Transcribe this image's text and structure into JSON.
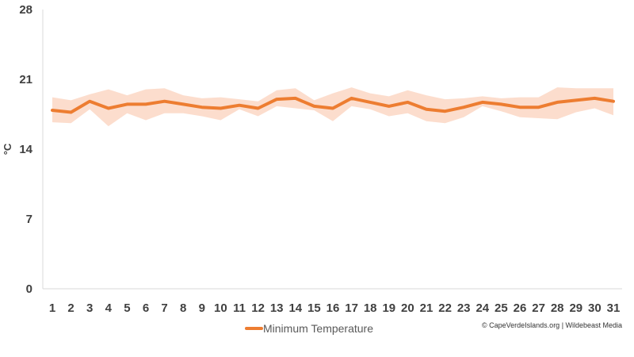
{
  "chart_data": {
    "type": "line",
    "x": [
      1,
      2,
      3,
      4,
      5,
      6,
      7,
      8,
      9,
      10,
      11,
      12,
      13,
      14,
      15,
      16,
      17,
      18,
      19,
      20,
      21,
      22,
      23,
      24,
      25,
      26,
      27,
      28,
      29,
      30,
      31
    ],
    "series": [
      {
        "name": "Minimum Temperature",
        "color": "#ed7d31",
        "values": [
          17.9,
          17.7,
          18.8,
          18.1,
          18.5,
          18.5,
          18.8,
          18.5,
          18.2,
          18.1,
          18.4,
          18.1,
          19.0,
          19.1,
          18.3,
          18.1,
          19.1,
          18.7,
          18.3,
          18.7,
          18.0,
          17.8,
          18.2,
          18.7,
          18.5,
          18.2,
          18.2,
          18.7,
          18.9,
          19.1,
          18.8
        ],
        "range_high": [
          19.2,
          18.9,
          19.5,
          20.0,
          19.4,
          20.0,
          20.1,
          19.4,
          19.1,
          19.2,
          19.0,
          18.8,
          19.9,
          20.1,
          18.9,
          19.6,
          20.2,
          19.6,
          19.3,
          19.9,
          19.4,
          19.0,
          19.1,
          19.3,
          19.1,
          19.2,
          19.2,
          20.2,
          20.1,
          20.1,
          20.1
        ],
        "range_low": [
          16.7,
          16.6,
          18.0,
          16.3,
          17.6,
          16.9,
          17.6,
          17.6,
          17.3,
          16.9,
          18.0,
          17.3,
          18.3,
          18.1,
          17.9,
          16.8,
          18.3,
          18.0,
          17.3,
          17.6,
          16.8,
          16.6,
          17.2,
          18.3,
          17.8,
          17.2,
          17.1,
          17.0,
          17.7,
          18.1,
          17.4
        ],
        "band_color": "#fbd5c0"
      }
    ],
    "ylabel": "°C",
    "yticks": [
      0,
      7,
      14,
      21,
      28
    ],
    "ylim": [
      0,
      28
    ],
    "xlim": [
      1,
      31
    ],
    "grid": false,
    "legend": {
      "position": "bottom",
      "label": "Minimum Temperature"
    }
  },
  "credit": "© CapeVerdeIslands.org | Wildebeast Media"
}
